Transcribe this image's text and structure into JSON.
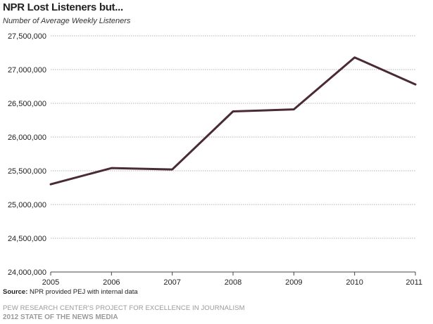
{
  "header": {
    "title": "NPR Lost Listeners  but...",
    "subtitle": "Number of Average Weekly Listeners"
  },
  "footer": {
    "source_label": "Source:",
    "source_text": "NPR provided PEJ with internal data",
    "org": "PEW RESEARCH CENTER'S PROJECT FOR EXCELLENCE IN JOURNALISM",
    "report": "2012 STATE OF THE NEWS MEDIA"
  },
  "colors": {
    "line": "#4a2a35",
    "grid": "#999999",
    "axis": "#444444"
  },
  "chart_data": {
    "type": "line",
    "title": "NPR Lost Listeners  but...",
    "subtitle": "Number of Average Weekly Listeners",
    "categories": [
      "2005",
      "2006",
      "2007",
      "2008",
      "2009",
      "2010",
      "2011"
    ],
    "series": [
      {
        "values": [
          25300000,
          25540000,
          25520000,
          26380000,
          26410000,
          27180000,
          26780000
        ]
      }
    ],
    "y_ticks": [
      "24,000,000",
      "24,500,000",
      "25,000,000",
      "25,500,000",
      "26,000,000",
      "26,500,000",
      "27,000,000",
      "27,500,000"
    ],
    "ylim": [
      24000000,
      27500000
    ],
    "grid": true,
    "legend": "none"
  }
}
